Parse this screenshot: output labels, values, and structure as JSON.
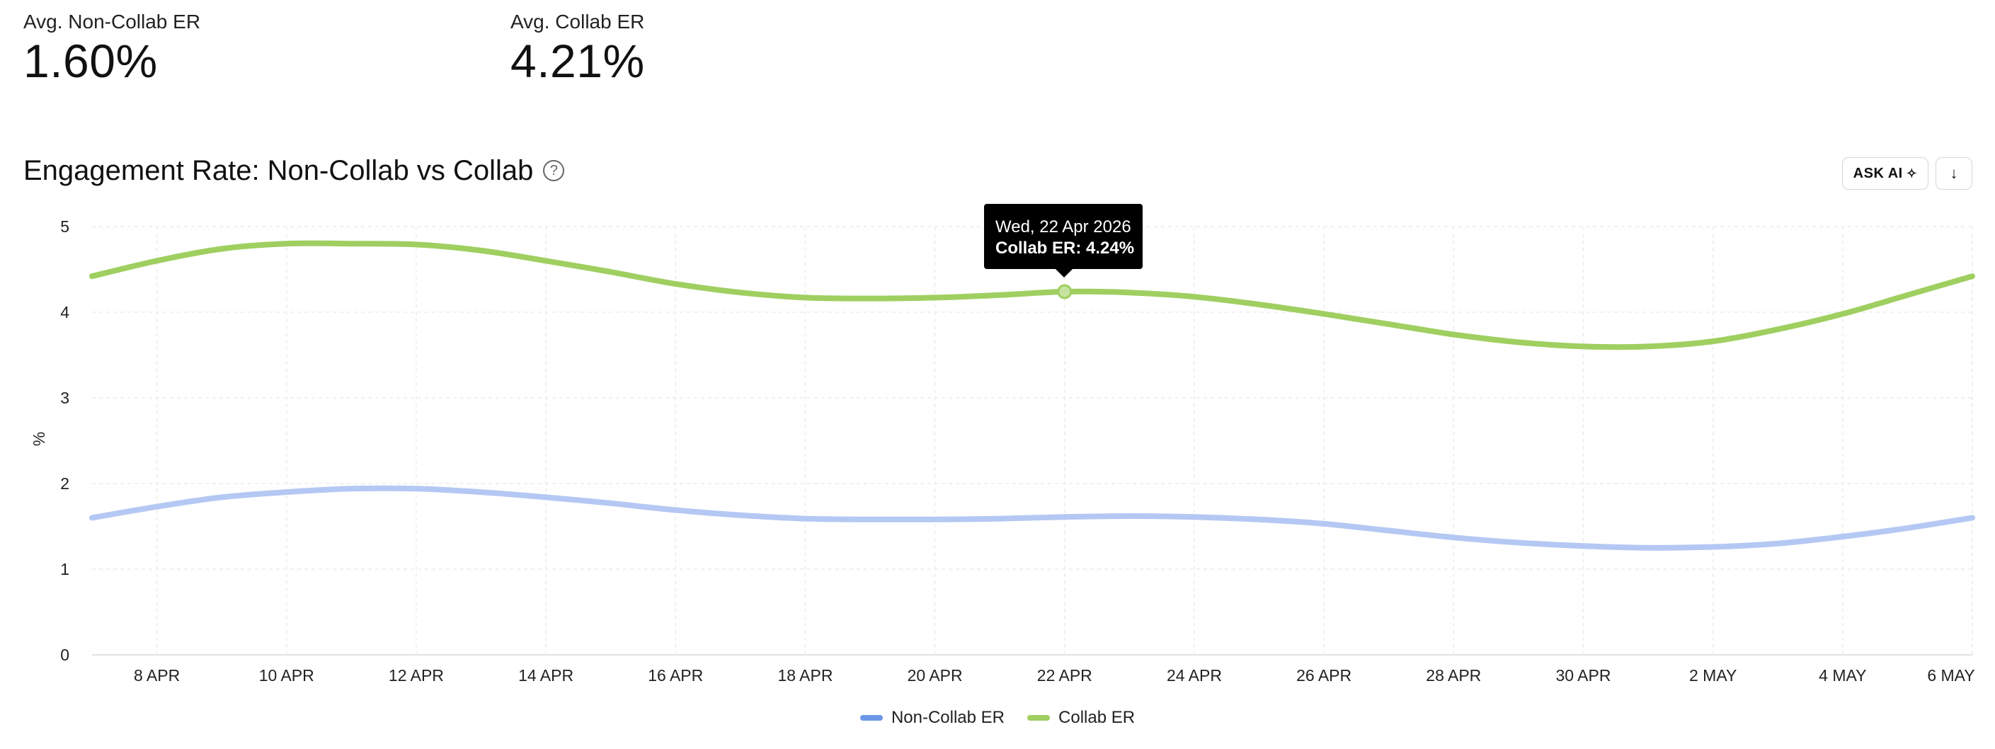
{
  "metrics": [
    {
      "label": "Avg. Non-Collab ER",
      "value": "1.60%"
    },
    {
      "label": "Avg. Collab ER",
      "value": "4.21%"
    }
  ],
  "header": {
    "title": "Engagement Rate: Non-Collab vs Collab",
    "help_icon": "question-circle-icon",
    "ask_ai_label": "ASK AI",
    "ask_ai_icon": "sparkle-icon",
    "download_icon": "arrow-down-icon"
  },
  "tooltip": {
    "date": "Wed, 22 Apr 2026",
    "text": "Collab ER: 4.24%"
  },
  "chart_data": {
    "type": "line",
    "title": "Engagement Rate: Non-Collab vs Collab",
    "xlabel": "",
    "ylabel": "%",
    "ylim": [
      0,
      5
    ],
    "yticks": [
      0,
      1,
      2,
      3,
      4,
      5
    ],
    "grid": true,
    "legend_position": "bottom-center",
    "x": [
      "2026-04-07",
      "2026-04-08",
      "2026-04-09",
      "2026-04-10",
      "2026-04-11",
      "2026-04-12",
      "2026-04-13",
      "2026-04-14",
      "2026-04-15",
      "2026-04-16",
      "2026-04-17",
      "2026-04-18",
      "2026-04-19",
      "2026-04-20",
      "2026-04-21",
      "2026-04-22",
      "2026-04-23",
      "2026-04-24",
      "2026-04-25",
      "2026-04-26",
      "2026-04-27",
      "2026-04-28",
      "2026-04-29",
      "2026-04-30",
      "2026-05-01",
      "2026-05-02",
      "2026-05-03",
      "2026-05-04",
      "2026-05-05",
      "2026-05-06"
    ],
    "xtick_labels": [
      {
        "date": "2026-04-08",
        "label": "8 APR"
      },
      {
        "date": "2026-04-10",
        "label": "10 APR"
      },
      {
        "date": "2026-04-12",
        "label": "12 APR"
      },
      {
        "date": "2026-04-14",
        "label": "14 APR"
      },
      {
        "date": "2026-04-16",
        "label": "16 APR"
      },
      {
        "date": "2026-04-18",
        "label": "18 APR"
      },
      {
        "date": "2026-04-20",
        "label": "20 APR"
      },
      {
        "date": "2026-04-22",
        "label": "22 APR"
      },
      {
        "date": "2026-04-24",
        "label": "24 APR"
      },
      {
        "date": "2026-04-26",
        "label": "26 APR"
      },
      {
        "date": "2026-04-28",
        "label": "28 APR"
      },
      {
        "date": "2026-04-30",
        "label": "30 APR"
      },
      {
        "date": "2026-05-02",
        "label": "2 MAY"
      },
      {
        "date": "2026-05-04",
        "label": "4 MAY"
      },
      {
        "date": "2026-05-06",
        "label": "6 MAY"
      }
    ],
    "series": [
      {
        "name": "Non-Collab ER",
        "color": "#b4c8f3",
        "legend_color": "#6b97e6",
        "values": [
          1.6,
          1.73,
          1.84,
          1.9,
          1.94,
          1.94,
          1.9,
          1.84,
          1.77,
          1.69,
          1.63,
          1.59,
          1.58,
          1.58,
          1.59,
          1.61,
          1.62,
          1.61,
          1.58,
          1.53,
          1.45,
          1.37,
          1.31,
          1.27,
          1.25,
          1.26,
          1.3,
          1.38,
          1.48,
          1.6
        ]
      },
      {
        "name": "Collab ER",
        "color": "#9fcf60",
        "legend_color": "#9fcf60",
        "values": [
          4.42,
          4.6,
          4.74,
          4.8,
          4.8,
          4.79,
          4.72,
          4.6,
          4.47,
          4.33,
          4.23,
          4.17,
          4.16,
          4.17,
          4.2,
          4.24,
          4.23,
          4.18,
          4.09,
          3.98,
          3.86,
          3.74,
          3.65,
          3.6,
          3.6,
          3.66,
          3.8,
          3.98,
          4.2,
          4.42
        ]
      }
    ]
  }
}
